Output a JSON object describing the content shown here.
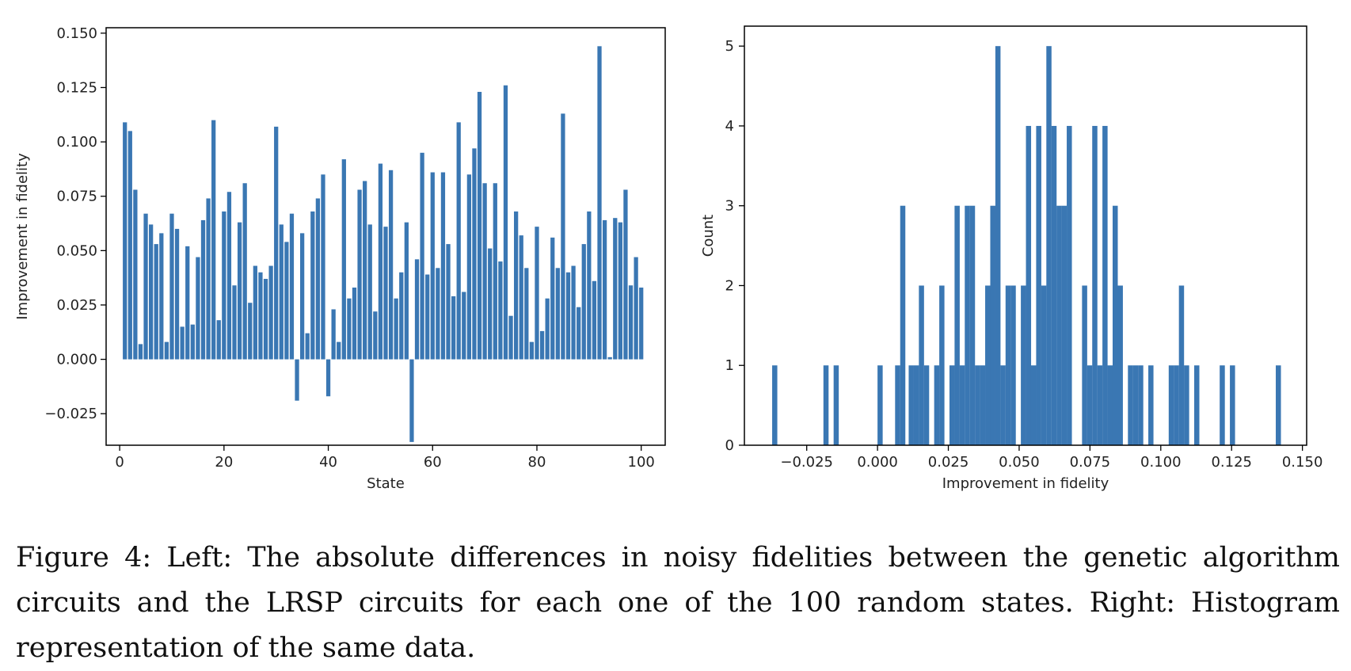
{
  "colors": {
    "bar": "#3a77b3",
    "axis": "#000000",
    "text": "#222222"
  },
  "chart_data": [
    {
      "type": "bar",
      "xlabel": "State",
      "ylabel": "Improvement in fidelity",
      "xlim": [
        -2.6,
        104.6
      ],
      "ylim": [
        -0.0395,
        0.1525
      ],
      "xticks": [
        0,
        20,
        40,
        60,
        80,
        100
      ],
      "xtick_labels": [
        "0",
        "20",
        "40",
        "60",
        "80",
        "100"
      ],
      "yticks": [
        -0.025,
        0,
        0.025,
        0.05,
        0.075,
        0.1,
        0.125,
        0.15
      ],
      "ytick_labels": [
        "−0.025",
        "0.000",
        "0.025",
        "0.050",
        "0.075",
        "0.100",
        "0.125",
        "0.150"
      ],
      "x": [
        1,
        2,
        3,
        4,
        5,
        6,
        7,
        8,
        9,
        10,
        11,
        12,
        13,
        14,
        15,
        16,
        17,
        18,
        19,
        20,
        21,
        22,
        23,
        24,
        25,
        26,
        27,
        28,
        29,
        30,
        31,
        32,
        33,
        34,
        35,
        36,
        37,
        38,
        39,
        40,
        41,
        42,
        43,
        44,
        45,
        46,
        47,
        48,
        49,
        50,
        51,
        52,
        53,
        54,
        55,
        56,
        57,
        58,
        59,
        60,
        61,
        62,
        63,
        64,
        65,
        66,
        67,
        68,
        69,
        70,
        71,
        72,
        73,
        74,
        75,
        76,
        77,
        78,
        79,
        80,
        81,
        82,
        83,
        84,
        85,
        86,
        87,
        88,
        89,
        90,
        91,
        92,
        93,
        94,
        95,
        96,
        97,
        98,
        99,
        100
      ],
      "values": [
        0.109,
        0.105,
        0.078,
        0.007,
        0.067,
        0.062,
        0.053,
        0.058,
        0.008,
        0.067,
        0.06,
        0.015,
        0.052,
        0.016,
        0.047,
        0.064,
        0.074,
        0.11,
        0.018,
        0.068,
        0.077,
        0.034,
        0.063,
        0.081,
        0.026,
        0.043,
        0.04,
        0.037,
        0.043,
        0.107,
        0.062,
        0.054,
        0.067,
        -0.019,
        0.058,
        0.012,
        0.068,
        0.074,
        0.085,
        -0.017,
        0.023,
        0.008,
        0.092,
        0.028,
        0.033,
        0.078,
        0.082,
        0.062,
        0.022,
        0.09,
        0.061,
        0.087,
        0.028,
        0.04,
        0.063,
        -0.038,
        0.046,
        0.095,
        0.039,
        0.086,
        0.042,
        0.086,
        0.053,
        0.029,
        0.109,
        0.031,
        0.085,
        0.097,
        0.123,
        0.081,
        0.051,
        0.081,
        0.045,
        0.126,
        0.02,
        0.068,
        0.057,
        0.042,
        0.008,
        0.061,
        0.013,
        0.028,
        0.056,
        0.042,
        0.113,
        0.04,
        0.043,
        0.024,
        0.053,
        0.068,
        0.036,
        0.144,
        0.064,
        0.001,
        0.065,
        0.063,
        0.078,
        0.034,
        0.047,
        0.033
      ]
    },
    {
      "type": "bar",
      "subtype": "histogram",
      "xlabel": "Improvement in fidelity",
      "ylabel": "Count",
      "xlim": [
        -0.047,
        0.1515
      ],
      "ylim": [
        0,
        5.25
      ],
      "bin_width": 0.00182,
      "xticks": [
        -0.025,
        0,
        0.025,
        0.05,
        0.075,
        0.1,
        0.125,
        0.15
      ],
      "xtick_labels": [
        "−0.025",
        "0.000",
        "0.025",
        "0.050",
        "0.075",
        "0.100",
        "0.125",
        "0.150"
      ],
      "yticks": [
        0,
        1,
        2,
        3,
        4,
        5
      ],
      "ytick_labels": [
        "0",
        "1",
        "2",
        "3",
        "4",
        "5"
      ],
      "bins": [
        {
          "x": -0.0372,
          "count": 1
        },
        {
          "x": -0.0191,
          "count": 1
        },
        {
          "x": -0.0155,
          "count": 1
        },
        {
          "x": 0.0,
          "count": 1
        },
        {
          "x": 0.0062,
          "count": 1
        },
        {
          "x": 0.008,
          "count": 3
        },
        {
          "x": 0.011,
          "count": 1
        },
        {
          "x": 0.0128,
          "count": 1
        },
        {
          "x": 0.0146,
          "count": 2
        },
        {
          "x": 0.0164,
          "count": 1
        },
        {
          "x": 0.02,
          "count": 1
        },
        {
          "x": 0.0218,
          "count": 2
        },
        {
          "x": 0.0254,
          "count": 1
        },
        {
          "x": 0.0272,
          "count": 3
        },
        {
          "x": 0.029,
          "count": 1
        },
        {
          "x": 0.0308,
          "count": 3
        },
        {
          "x": 0.0326,
          "count": 3
        },
        {
          "x": 0.0344,
          "count": 1
        },
        {
          "x": 0.0362,
          "count": 1
        },
        {
          "x": 0.038,
          "count": 2
        },
        {
          "x": 0.0398,
          "count": 3
        },
        {
          "x": 0.0416,
          "count": 5
        },
        {
          "x": 0.0434,
          "count": 1
        },
        {
          "x": 0.0452,
          "count": 2
        },
        {
          "x": 0.047,
          "count": 2
        },
        {
          "x": 0.0506,
          "count": 2
        },
        {
          "x": 0.0524,
          "count": 4
        },
        {
          "x": 0.0542,
          "count": 1
        },
        {
          "x": 0.056,
          "count": 4
        },
        {
          "x": 0.0578,
          "count": 2
        },
        {
          "x": 0.0596,
          "count": 5
        },
        {
          "x": 0.0614,
          "count": 4
        },
        {
          "x": 0.0632,
          "count": 3
        },
        {
          "x": 0.065,
          "count": 3
        },
        {
          "x": 0.0668,
          "count": 4
        },
        {
          "x": 0.0722,
          "count": 2
        },
        {
          "x": 0.074,
          "count": 1
        },
        {
          "x": 0.0758,
          "count": 4
        },
        {
          "x": 0.0776,
          "count": 1
        },
        {
          "x": 0.0794,
          "count": 4
        },
        {
          "x": 0.0812,
          "count": 1
        },
        {
          "x": 0.083,
          "count": 3
        },
        {
          "x": 0.0848,
          "count": 2
        },
        {
          "x": 0.0884,
          "count": 1
        },
        {
          "x": 0.0902,
          "count": 1
        },
        {
          "x": 0.092,
          "count": 1
        },
        {
          "x": 0.0956,
          "count": 1
        },
        {
          "x": 0.1028,
          "count": 1
        },
        {
          "x": 0.1046,
          "count": 1
        },
        {
          "x": 0.1064,
          "count": 2
        },
        {
          "x": 0.1082,
          "count": 1
        },
        {
          "x": 0.1118,
          "count": 1
        },
        {
          "x": 0.1208,
          "count": 1
        },
        {
          "x": 0.1244,
          "count": 1
        },
        {
          "x": 0.1406,
          "count": 1
        }
      ]
    }
  ],
  "caption": "Figure 4: Left: The absolute differences in noisy fidelities between the genetic algorithm circuits and the LRSP circuits for each one of the 100 random states. Right: Histogram representation of the same data."
}
